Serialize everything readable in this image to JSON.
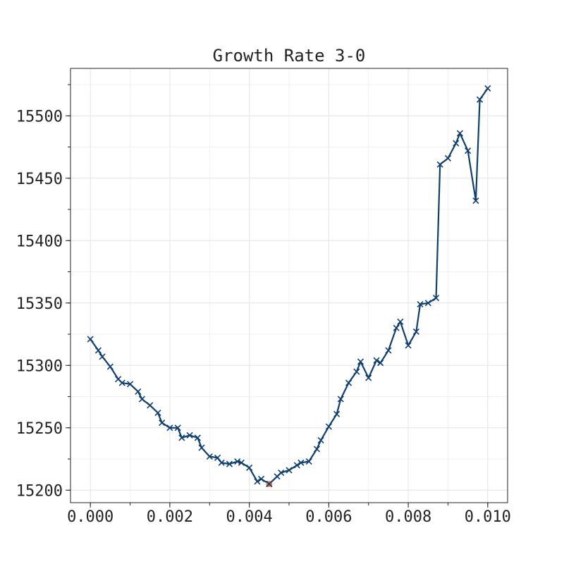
{
  "chart_data": {
    "type": "line",
    "title": "Growth Rate 3-0",
    "xlabel": "",
    "ylabel": "",
    "xlim": [
      -0.0005,
      0.0105
    ],
    "ylim": [
      15190,
      15538
    ],
    "xticks": [
      0.0,
      0.002,
      0.004,
      0.006,
      0.008,
      0.01
    ],
    "xtick_labels": [
      "0.000",
      "0.002",
      "0.004",
      "0.006",
      "0.008",
      "0.010"
    ],
    "yticks": [
      15200,
      15250,
      15300,
      15350,
      15400,
      15450,
      15500
    ],
    "ytick_labels": [
      "15200",
      "15250",
      "15300",
      "15350",
      "15400",
      "15450",
      "15500"
    ],
    "grid": true,
    "colors": {
      "line": "#0d3f73",
      "marker": "#0d3f73",
      "highlight": "#e26d3f"
    },
    "series": [
      {
        "marker": "x",
        "x": [
          0.0,
          0.0002,
          0.0003,
          0.0005,
          0.0007,
          0.0008,
          0.001,
          0.0012,
          0.0013,
          0.0015,
          0.0017,
          0.0018,
          0.002,
          0.0022,
          0.0023,
          0.0025,
          0.0027,
          0.0028,
          0.003,
          0.0032,
          0.0033,
          0.0035,
          0.0037,
          0.0038,
          0.004,
          0.0042,
          0.0043,
          0.0045,
          0.0047,
          0.0048,
          0.005,
          0.0052,
          0.0053,
          0.0055,
          0.0057,
          0.0058,
          0.006,
          0.0062,
          0.0063,
          0.0065,
          0.0067,
          0.0068,
          0.007,
          0.0072,
          0.0073,
          0.0075,
          0.0077,
          0.0078,
          0.008,
          0.0082,
          0.0083,
          0.0085,
          0.0087,
          0.0088,
          0.009,
          0.0092,
          0.0093,
          0.0095,
          0.0097,
          0.0098,
          0.01
        ],
        "y": [
          15321,
          15312,
          15307,
          15299,
          15289,
          15286,
          15285,
          15279,
          15273,
          15268,
          15262,
          15254,
          15250,
          15250,
          15242,
          15244,
          15242,
          15234,
          15227,
          15226,
          15222,
          15221,
          15223,
          15222,
          15218,
          15207,
          15209,
          15205,
          15211,
          15214,
          15216,
          15220,
          15222,
          15223,
          15233,
          15240,
          15251,
          15261,
          15273,
          15286,
          15295,
          15303,
          15290,
          15304,
          15302,
          15312,
          15330,
          15335,
          15316,
          15327,
          15349,
          15350,
          15354,
          15461,
          15466,
          15478,
          15486,
          15472,
          15432,
          15513,
          15522
        ]
      }
    ],
    "annotations": [
      {
        "type": "min-marker",
        "x": 0.0045,
        "y": 15205,
        "marker": "square"
      }
    ]
  }
}
